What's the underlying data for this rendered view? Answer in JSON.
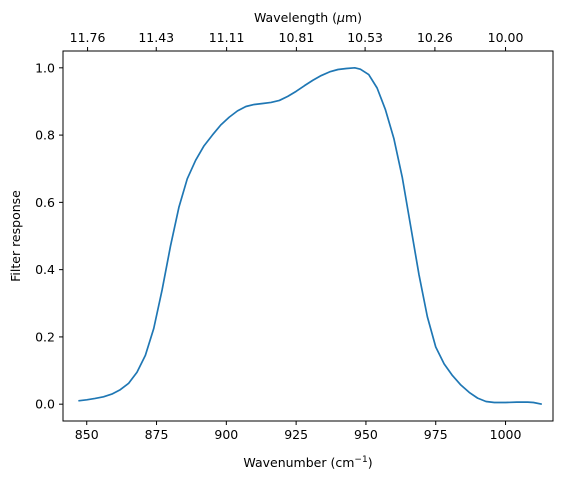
{
  "chart_data": {
    "type": "line",
    "xlabel": "Wavenumber (cm",
    "xlabel_sup": "−1",
    "xlabel_close": ")",
    "ylabel": "Filter response",
    "top_xlabel": "Wavelength (",
    "top_xlabel_mu": "μ",
    "top_xlabel_close": "m)",
    "xlim": [
      841.5,
      1017
    ],
    "ylim": [
      -0.05,
      1.05
    ],
    "grid": false,
    "x_ticks": [
      {
        "value": 850,
        "label": "850"
      },
      {
        "value": 875,
        "label": "875"
      },
      {
        "value": 900,
        "label": "900"
      },
      {
        "value": 925,
        "label": "925"
      },
      {
        "value": 950,
        "label": "950"
      },
      {
        "value": 975,
        "label": "975"
      },
      {
        "value": 1000,
        "label": "1000"
      }
    ],
    "y_ticks": [
      {
        "value": 0.0,
        "label": "0.0"
      },
      {
        "value": 0.2,
        "label": "0.2"
      },
      {
        "value": 0.4,
        "label": "0.4"
      },
      {
        "value": 0.6,
        "label": "0.6"
      },
      {
        "value": 0.8,
        "label": "0.8"
      },
      {
        "value": 1.0,
        "label": "1.0"
      }
    ],
    "top_ticks": [
      {
        "value": 850.3,
        "label": "11.76"
      },
      {
        "value": 874.9,
        "label": "11.43"
      },
      {
        "value": 900.1,
        "label": "11.11"
      },
      {
        "value": 925.1,
        "label": "10.81"
      },
      {
        "value": 949.7,
        "label": "10.53"
      },
      {
        "value": 974.7,
        "label": "10.26"
      },
      {
        "value": 1000.0,
        "label": "10.00"
      }
    ],
    "series": [
      {
        "color": "#1f77b4",
        "x": [
          847,
          850,
          853,
          856,
          859,
          862,
          865,
          868,
          871,
          874,
          877,
          880,
          883,
          886,
          889,
          892,
          895,
          898,
          901,
          904,
          907,
          910,
          913,
          916,
          919,
          922,
          925,
          928,
          931,
          934,
          937,
          940,
          943,
          946,
          948,
          951,
          954,
          957,
          960,
          963,
          966,
          969,
          972,
          975,
          978,
          981,
          984,
          987,
          990,
          993,
          996,
          1000,
          1004,
          1008,
          1010,
          1013
        ],
        "y": [
          0.01,
          0.013,
          0.017,
          0.022,
          0.03,
          0.043,
          0.062,
          0.095,
          0.145,
          0.225,
          0.34,
          0.47,
          0.585,
          0.67,
          0.725,
          0.768,
          0.8,
          0.83,
          0.853,
          0.872,
          0.885,
          0.891,
          0.894,
          0.897,
          0.903,
          0.915,
          0.93,
          0.947,
          0.963,
          0.977,
          0.988,
          0.995,
          0.998,
          1.0,
          0.996,
          0.98,
          0.94,
          0.875,
          0.79,
          0.675,
          0.53,
          0.385,
          0.26,
          0.17,
          0.12,
          0.085,
          0.057,
          0.035,
          0.018,
          0.008,
          0.005,
          0.005,
          0.006,
          0.006,
          0.005,
          0.0
        ]
      }
    ]
  }
}
